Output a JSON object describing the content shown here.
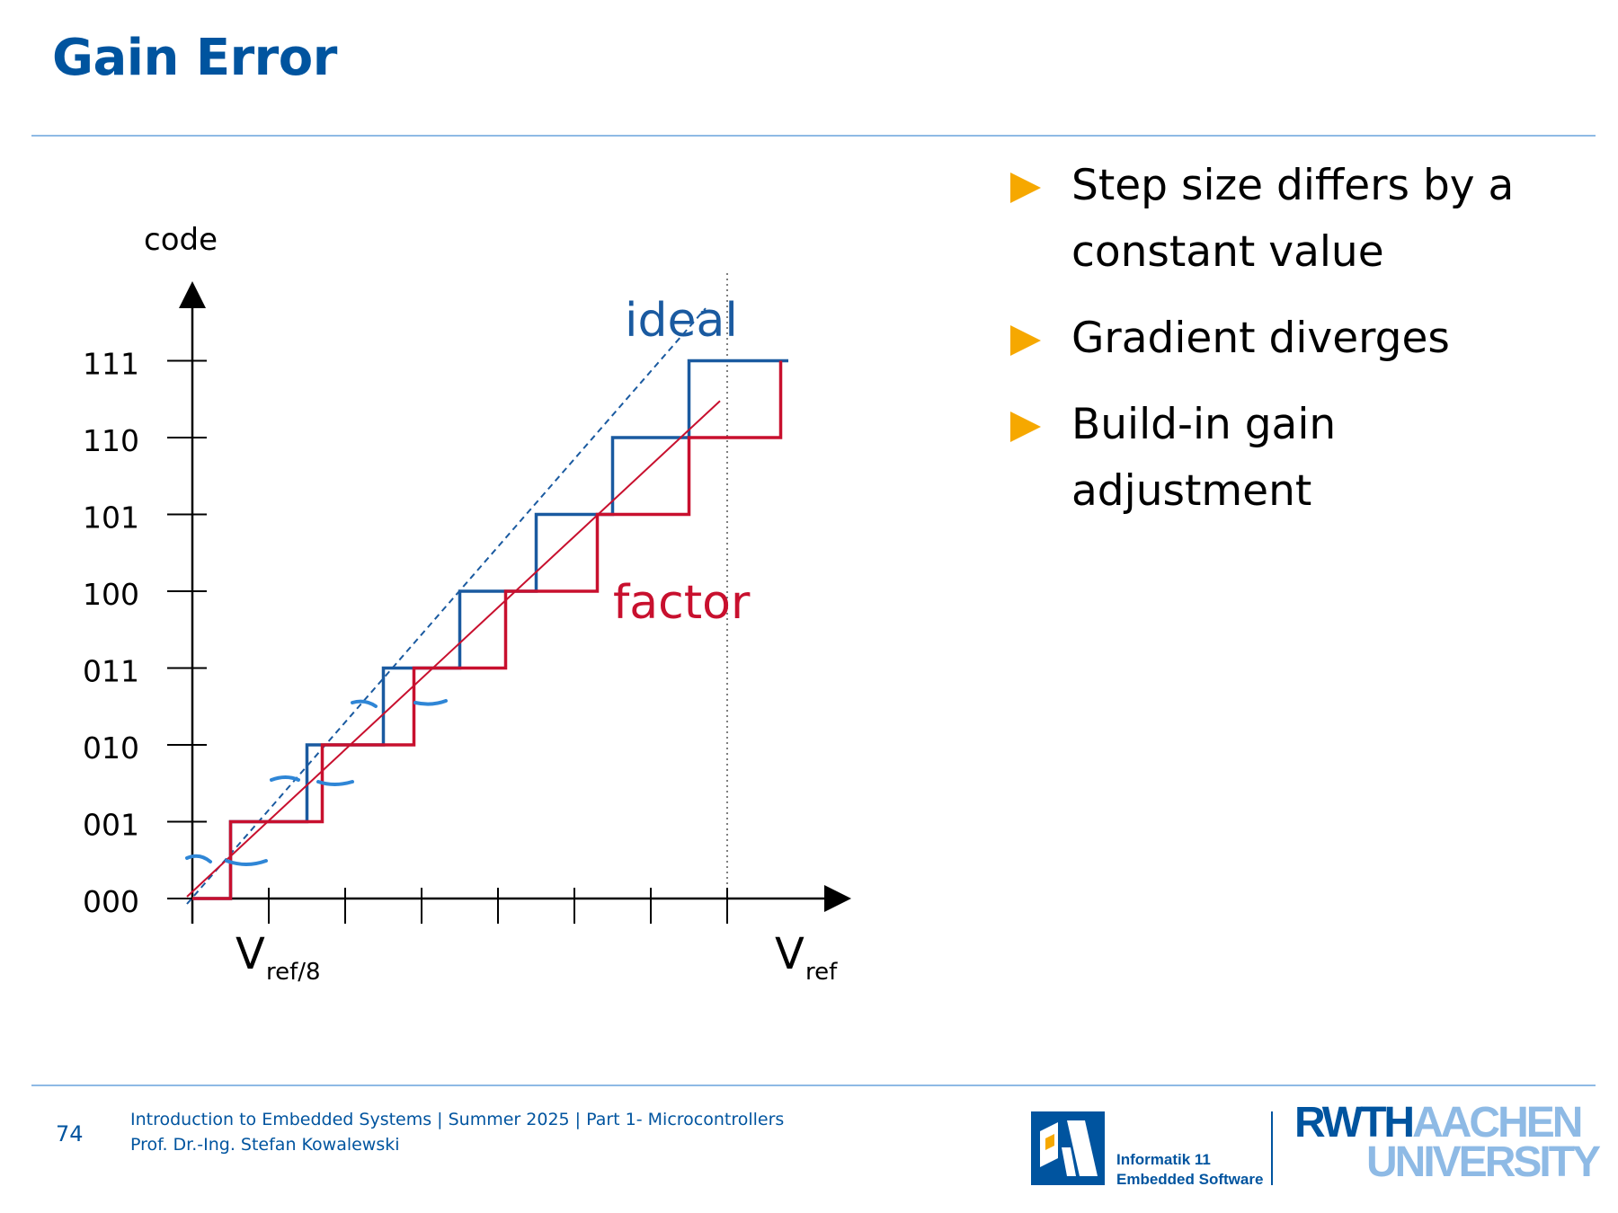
{
  "slide": {
    "title": "Gain Error",
    "page_number": "74"
  },
  "bullets": [
    "Step size differs by a constant value",
    "Gradient diverges",
    "Build-in gain adjustment"
  ],
  "diagram": {
    "y_axis_label": "code",
    "codes": [
      "000",
      "001",
      "010",
      "011",
      "100",
      "101",
      "110",
      "111"
    ],
    "x_label_vref8_main": "V",
    "x_label_vref8_sub": "ref/8",
    "x_label_vref_main": "V",
    "x_label_vref_sub": "ref",
    "ideal_label": "ideal",
    "factor_label": "factor",
    "colors": {
      "ideal": "#1a5aa0",
      "factor": "#c8102e",
      "axis": "#000000"
    },
    "ideal_steps_x": [
      0.5,
      1.5,
      2.5,
      3.5,
      4.5,
      5.5,
      6.5
    ],
    "ideal_end_x": 7.8,
    "factor_steps_x": [
      0.5,
      1.7,
      2.9,
      4.1,
      5.3,
      6.5,
      7.7
    ],
    "factor_end_x": 7.8,
    "ideal_line": [
      [
        0,
        0
      ],
      [
        7.8,
        7.8
      ]
    ],
    "factor_line": [
      [
        0,
        0
      ],
      [
        7.8,
        6.5
      ]
    ]
  },
  "footer": {
    "course_line": "Introduction to Embedded Systems | Summer 2025 | Part 1- Microcontrollers",
    "author_line": "Prof. Dr.-Ing. Stefan Kowalewski",
    "informatik_line1": "Informatik 11",
    "informatik_line2": "Embedded Software",
    "rwth_part1": "RWTH",
    "rwth_part2": "AACHEN",
    "rwth_part3": "UNIVERSITY"
  }
}
